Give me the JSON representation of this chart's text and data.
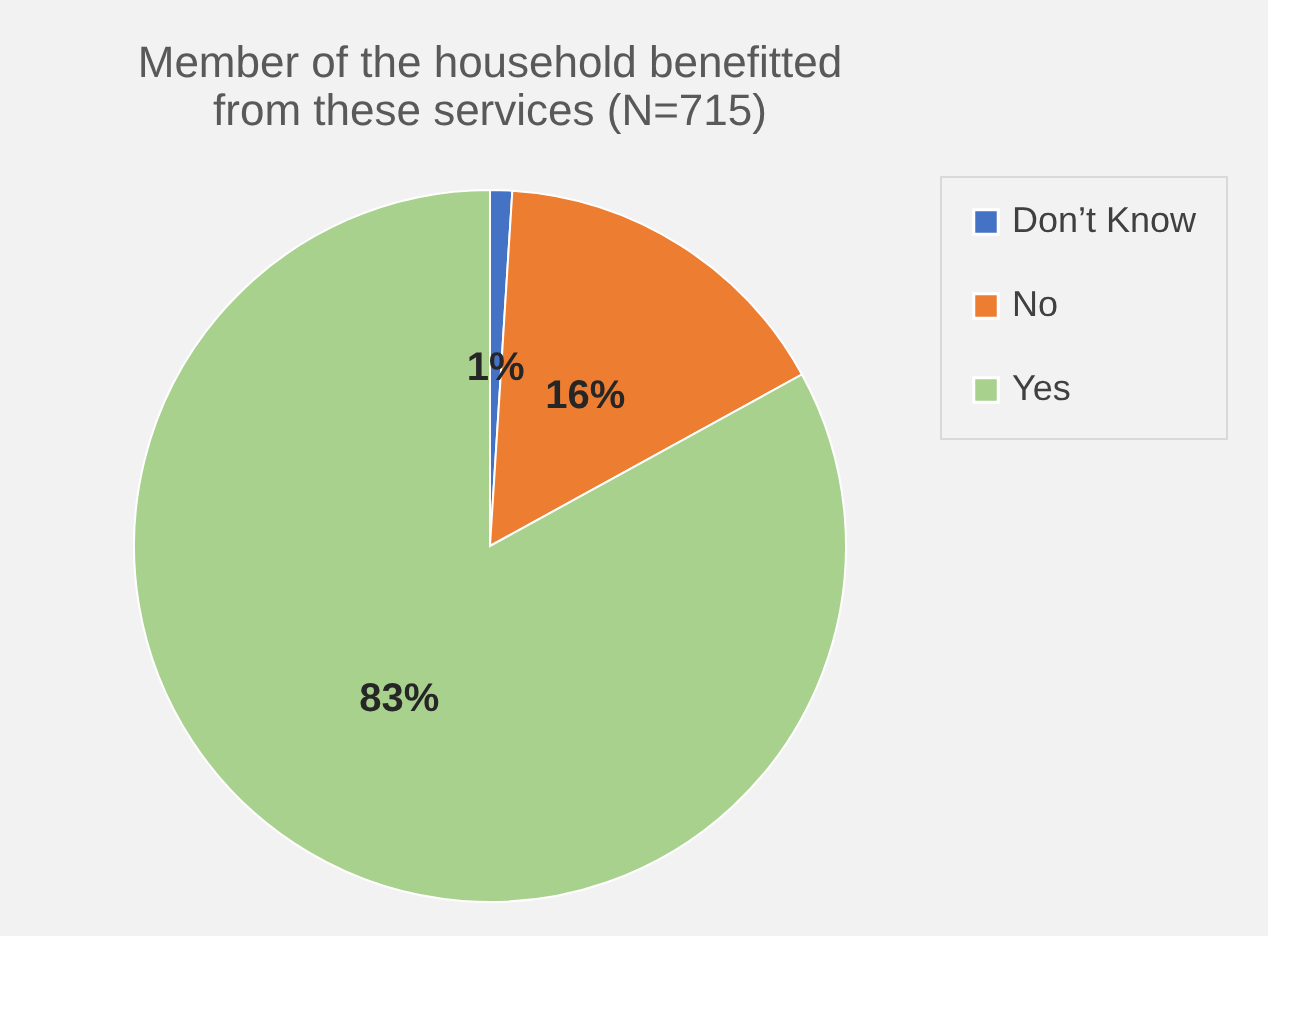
{
  "chart_data": {
    "type": "pie",
    "title": [
      "Member of the household benefitted",
      "from these services (N=715)"
    ],
    "categories": [
      "Don’t Know",
      "No",
      "Yes"
    ],
    "values": [
      1,
      16,
      83
    ],
    "colors": [
      "#4472c4",
      "#ed7d31",
      "#a9d18e"
    ],
    "value_labels": [
      "1%",
      "16%",
      "83%"
    ],
    "legend": "right"
  }
}
